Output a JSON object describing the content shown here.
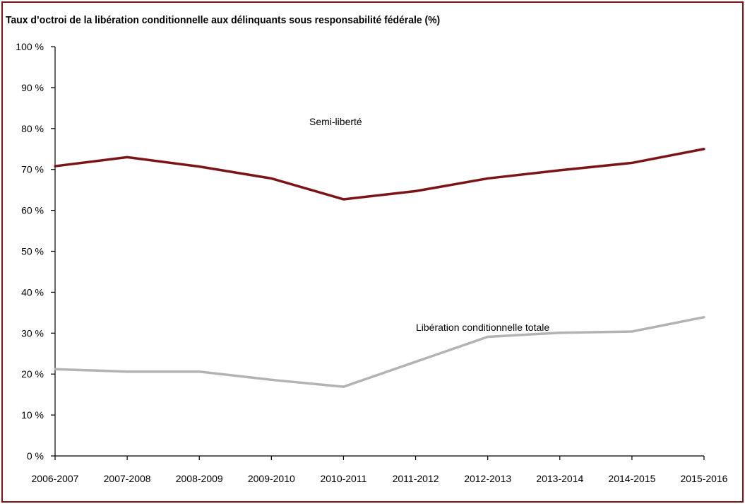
{
  "chart_data": {
    "type": "line",
    "title": "Taux d’octroi de la libération conditionnelle aux délinquants sous responsabilité fédérale (%)",
    "xlabel": "",
    "ylabel": "",
    "categories": [
      "2006-2007",
      "2007-2008",
      "2008-2009",
      "2009-2010",
      "2010-2011",
      "2011-2012",
      "2012-2013",
      "2013-2014",
      "2014-2015",
      "2015-2016"
    ],
    "ylim": [
      0,
      100
    ],
    "yticks": [
      0,
      10,
      20,
      30,
      40,
      50,
      60,
      70,
      80,
      90,
      100
    ],
    "ytick_labels": [
      "0 %",
      "10 %",
      "20 %",
      "30 %",
      "40 %",
      "50 %",
      "60 %",
      "70 %",
      "80 %",
      "90 %",
      "100 %"
    ],
    "grid": false,
    "legend": "none",
    "series": [
      {
        "name": "Semi-liberté",
        "color": "#7b1416",
        "values": [
          70.8,
          73.0,
          70.7,
          67.8,
          62.7,
          64.7,
          67.8,
          69.8,
          71.6,
          75.0
        ]
      },
      {
        "name": "Libération conditionnelle totale",
        "color": "#b3b3b3",
        "values": [
          21.2,
          20.6,
          20.6,
          18.6,
          16.9,
          23.0,
          29.1,
          30.1,
          30.4,
          33.9
        ]
      }
    ]
  },
  "colors": {
    "frame": "#7b1416",
    "axis": "#000000"
  }
}
